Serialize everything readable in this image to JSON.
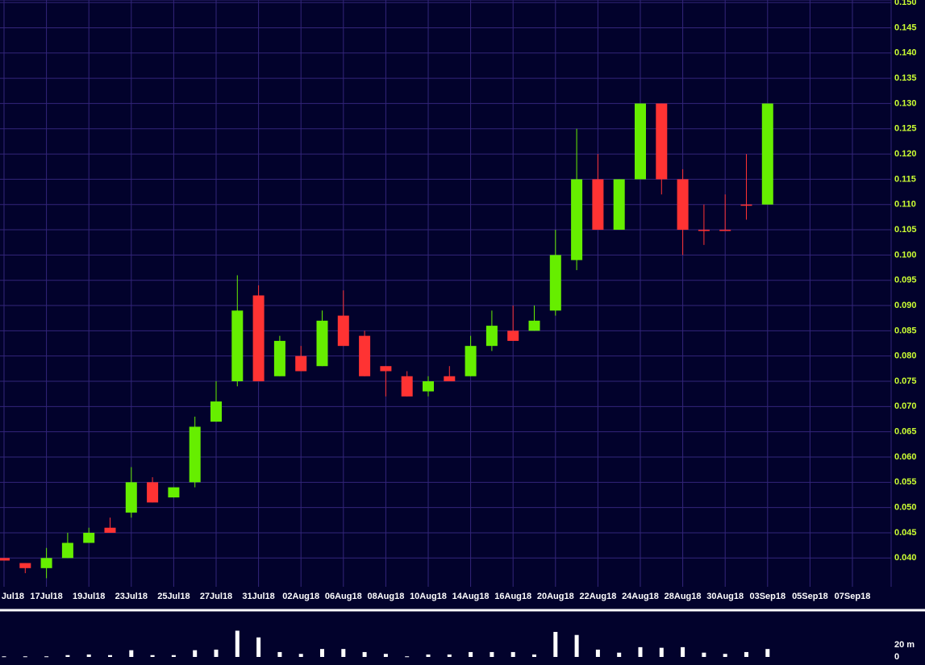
{
  "chart_data": {
    "type": "candlestick",
    "categories": [
      "Jul18",
      null,
      "17Jul18",
      null,
      "19Jul18",
      null,
      "23Jul18",
      null,
      "25Jul18",
      null,
      "27Jul18",
      null,
      "31Jul18",
      null,
      "02Aug18",
      null,
      "06Aug18",
      null,
      "08Aug18",
      null,
      "10Aug18",
      null,
      "14Aug18",
      null,
      "16Aug18",
      null,
      "20Aug18",
      null,
      "22Aug18",
      null,
      "24Aug18",
      null,
      "28Aug18",
      null,
      "30Aug18",
      null,
      "03Sep18",
      null,
      "05Sep18",
      null,
      "07Sep18"
    ],
    "open": [
      0.04,
      0.039,
      0.038,
      0.04,
      0.043,
      0.046,
      0.049,
      0.055,
      0.052,
      0.055,
      0.067,
      0.075,
      0.092,
      0.076,
      0.08,
      0.078,
      0.088,
      0.084,
      0.078,
      0.076,
      0.073,
      0.076,
      0.076,
      0.082,
      0.085,
      0.085,
      0.089,
      0.099,
      0.115,
      0.105,
      0.115,
      0.13,
      0.115,
      0.105,
      0.105,
      0.11,
      0.11,
      null,
      null,
      null,
      null
    ],
    "high": [
      0.04,
      0.039,
      0.042,
      0.045,
      0.046,
      0.048,
      0.058,
      0.056,
      0.054,
      0.068,
      0.075,
      0.096,
      0.094,
      0.084,
      0.082,
      0.089,
      0.093,
      0.085,
      0.078,
      0.077,
      0.076,
      0.078,
      0.084,
      0.089,
      0.09,
      0.09,
      0.105,
      0.125,
      0.12,
      0.115,
      0.13,
      0.13,
      0.117,
      0.11,
      0.112,
      0.12,
      0.13,
      null,
      null,
      null,
      null
    ],
    "low": [
      0.0395,
      0.037,
      0.036,
      0.04,
      0.043,
      0.045,
      0.048,
      0.051,
      0.052,
      0.054,
      0.067,
      0.074,
      0.075,
      0.076,
      0.077,
      0.078,
      0.082,
      0.076,
      0.072,
      0.072,
      0.072,
      0.075,
      0.076,
      0.081,
      0.083,
      0.085,
      0.088,
      0.097,
      0.105,
      0.105,
      0.115,
      0.112,
      0.1,
      0.102,
      0.105,
      0.107,
      0.11,
      null,
      null,
      null,
      null
    ],
    "close": [
      0.0395,
      0.038,
      0.04,
      0.043,
      0.045,
      0.045,
      0.055,
      0.051,
      0.054,
      0.066,
      0.071,
      0.089,
      0.075,
      0.083,
      0.077,
      0.087,
      0.082,
      0.076,
      0.077,
      0.072,
      0.075,
      0.075,
      0.082,
      0.086,
      0.083,
      0.087,
      0.1,
      0.115,
      0.105,
      0.115,
      0.13,
      0.115,
      0.105,
      0.105,
      0.105,
      0.11,
      0.13,
      null,
      null,
      null,
      null
    ],
    "up_color": "#66ee00",
    "down_color": "#ff3333",
    "ylim": [
      0.0343,
      0.1505
    ],
    "yticks": [
      {
        "value": 0.04,
        "label": "0.040"
      },
      0.045,
      {
        "value": 0.05,
        "label": "0.050"
      },
      0.055,
      {
        "value": 0.06,
        "label": "0.060"
      },
      0.065,
      {
        "value": 0.07,
        "label": "0.070"
      },
      0.075,
      {
        "value": 0.08,
        "label": "0.080"
      },
      0.085,
      {
        "value": 0.09,
        "label": "0.090"
      },
      0.095,
      {
        "value": 0.1,
        "label": "0.100"
      },
      0.105,
      {
        "value": 0.11,
        "label": "0.110"
      },
      0.115,
      {
        "value": 0.12,
        "label": "0.120"
      },
      0.125,
      {
        "value": 0.13,
        "label": "0.130"
      },
      0.135,
      {
        "value": 0.14,
        "label": "0.140"
      },
      0.145,
      {
        "value": 0.15,
        "label": "0.150"
      }
    ],
    "grid": true,
    "volume": {
      "values": [
        1,
        1,
        1,
        3,
        4,
        3,
        11,
        3,
        3,
        11,
        12,
        43,
        32,
        8,
        5,
        13,
        13,
        8,
        5,
        1,
        4,
        4,
        8,
        8,
        8,
        4,
        41,
        36,
        12,
        7,
        16,
        15,
        16,
        7,
        5,
        8,
        13,
        null,
        null,
        null,
        null
      ],
      "color": "#ffffff",
      "ylim": [
        0,
        70
      ],
      "yticks": [
        0,
        {
          "value": 20,
          "label": "20 m"
        }
      ]
    }
  }
}
